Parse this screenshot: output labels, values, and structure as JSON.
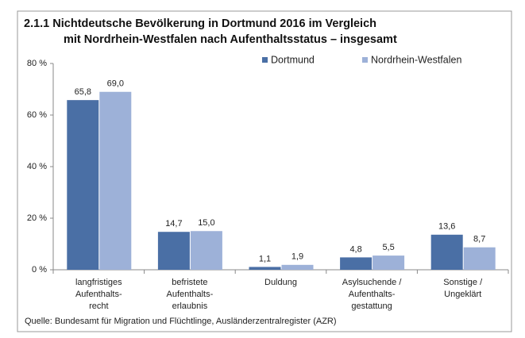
{
  "chart_data": {
    "type": "bar",
    "title": [
      "2.1.1  Nichtdeutsche Bevölkerung in Dortmund 2016 im Vergleich",
      "mit Nordrhein-Westfalen nach Aufenthaltsstatus – insgesamt"
    ],
    "categories": [
      [
        "langfristiges",
        "Aufenthalts-",
        "recht"
      ],
      [
        "befristete",
        "Aufenthalts-",
        "erlaubnis"
      ],
      [
        "Duldung"
      ],
      [
        "Asylsuchende /",
        "Aufenthalts-",
        "gestattung"
      ],
      [
        "Sonstige /",
        "Ungeklärt"
      ]
    ],
    "series": [
      {
        "name": "Dortmund",
        "color": "#4a6fa5",
        "values": [
          65.8,
          14.7,
          1.1,
          4.8,
          13.6
        ],
        "value_labels": [
          "65,8",
          "14,7",
          "1,1",
          "4,8",
          "13,6"
        ]
      },
      {
        "name": "Nordrhein-Westfalen",
        "color": "#9db1d8",
        "values": [
          69.0,
          15.0,
          1.9,
          5.5,
          8.7
        ],
        "value_labels": [
          "69,0",
          "15,0",
          "1,9",
          "5,5",
          "8,7"
        ]
      }
    ],
    "ylim": [
      0,
      80
    ],
    "yticks": [
      {
        "value": 0,
        "label": "0 %"
      },
      {
        "value": 20,
        "label": "20 %"
      },
      {
        "value": 40,
        "label": "40 %"
      },
      {
        "value": 60,
        "label": "60 %"
      },
      {
        "value": 80,
        "label": "80 %"
      }
    ],
    "grid": false,
    "legend": "top",
    "source": "Quelle: Bundesamt für Migration und Flüchtlinge, Ausländerzentralregister (AZR)"
  }
}
